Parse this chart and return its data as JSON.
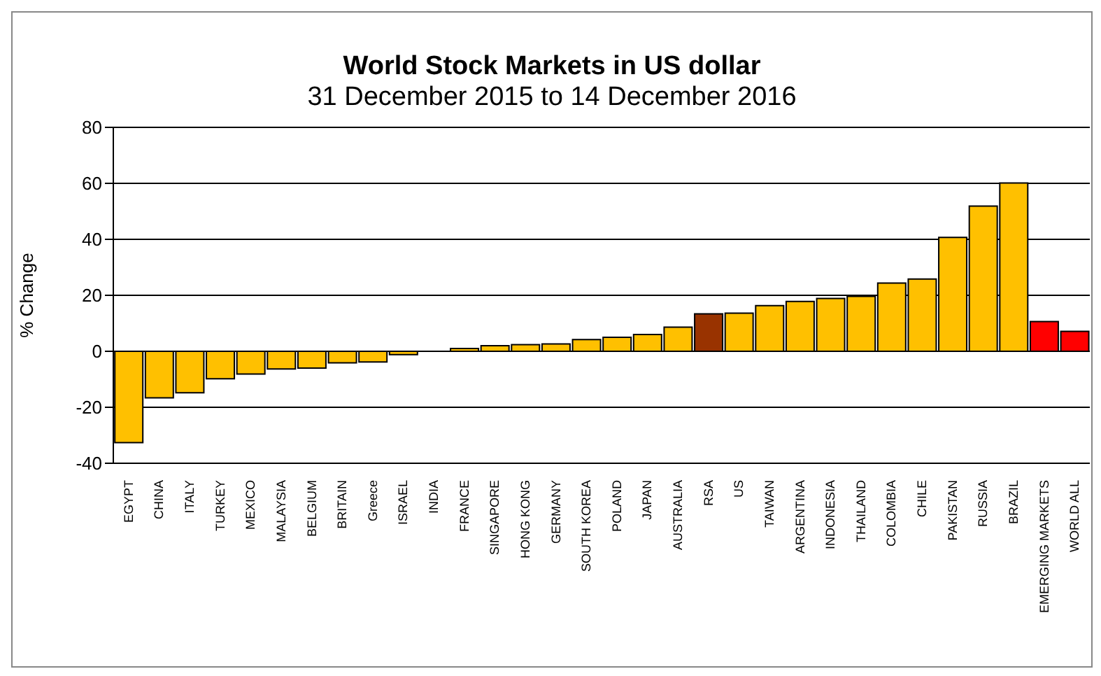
{
  "chart_data": {
    "type": "bar",
    "title": "World Stock Markets in US dollar",
    "subtitle": "31 December 2015 to 14 December 2016",
    "ylabel": "% Change",
    "categories": [
      "EGYPT",
      "CHINA",
      "ITALY",
      "TURKEY",
      "MEXICO",
      "MALAYSIA",
      "BELGIUM",
      "BRITAIN",
      "Greece",
      "ISRAEL",
      "INDIA",
      "FRANCE",
      "SINGAPORE",
      "HONG KONG",
      "GERMANY",
      "SOUTH KOREA",
      "POLAND",
      "JAPAN",
      "AUSTRALIA",
      "RSA",
      "US",
      "TAIWAN",
      "ARGENTINA",
      "INDONESIA",
      "THAILAND",
      "COLOMBIA",
      "CHILE",
      "PAKISTAN",
      "RUSSIA",
      "BRAZIL",
      "EMERGING MARKETS",
      "WORLD ALL"
    ],
    "values": [
      -32.6,
      -16.6,
      -14.8,
      -9.8,
      -8.1,
      -6.3,
      -6.0,
      -4.1,
      -3.8,
      -1.2,
      null,
      1.0,
      2.0,
      2.4,
      2.6,
      4.2,
      5.0,
      6.0,
      8.6,
      13.4,
      13.6,
      16.3,
      17.8,
      18.9,
      19.6,
      24.4,
      25.8,
      40.7,
      51.9,
      60.1,
      10.6,
      7.1
    ],
    "colors": [
      "#ffc000",
      "#ffc000",
      "#ffc000",
      "#ffc000",
      "#ffc000",
      "#ffc000",
      "#ffc000",
      "#ffc000",
      "#ffc000",
      "#ffc000",
      "#ffc000",
      "#ffc000",
      "#ffc000",
      "#ffc000",
      "#ffc000",
      "#ffc000",
      "#ffc000",
      "#ffc000",
      "#ffc000",
      "#993300",
      "#ffc000",
      "#ffc000",
      "#ffc000",
      "#ffc000",
      "#ffc000",
      "#ffc000",
      "#ffc000",
      "#ffc000",
      "#ffc000",
      "#ffc000",
      "#ff0000",
      "#ff0000"
    ],
    "ylim": [
      -40,
      80
    ],
    "yticks": [
      -40,
      -20,
      0,
      20,
      40,
      60,
      80
    ],
    "grid": "y"
  }
}
